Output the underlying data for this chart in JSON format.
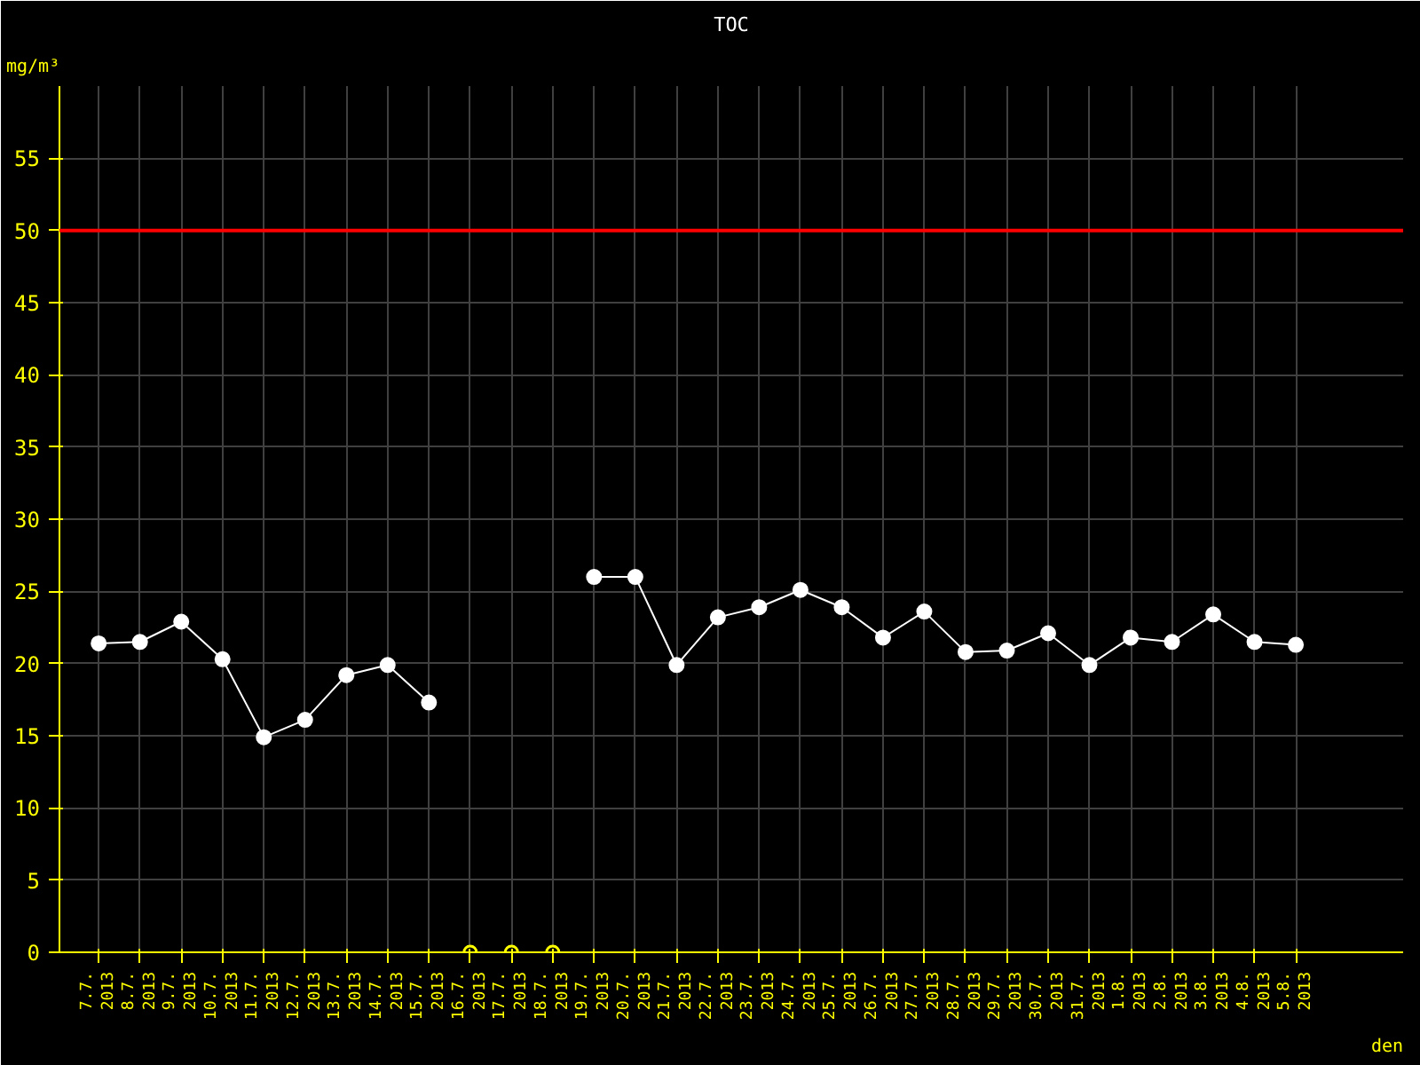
{
  "chart_data": {
    "type": "line",
    "title": "TOC",
    "xlabel": "den",
    "ylabel": "mg/m³",
    "categories": [
      "7.7. 2013",
      "8.7. 2013",
      "9.7. 2013",
      "10.7. 2013",
      "11.7. 2013",
      "12.7. 2013",
      "13.7. 2013",
      "14.7. 2013",
      "15.7. 2013",
      "16.7. 2013",
      "17.7. 2013",
      "18.7. 2013",
      "19.7. 2013",
      "20.7. 2013",
      "21.7. 2013",
      "22.7. 2013",
      "23.7. 2013",
      "24.7. 2013",
      "25.7. 2013",
      "26.7. 2013",
      "27.7. 2013",
      "28.7. 2013",
      "29.7. 2013",
      "30.7. 2013",
      "31.7. 2013",
      "1.8. 2013",
      "2.8. 2013",
      "3.8. 2013",
      "4.8. 2013",
      "5.8. 2013"
    ],
    "series": [
      {
        "color": "#ffffff",
        "marker": "circle",
        "values": [
          21.4,
          21.5,
          22.9,
          20.3,
          14.9,
          16.1,
          19.2,
          19.9,
          17.3,
          null,
          null,
          null,
          26.0,
          26.0,
          19.9,
          23.2,
          23.9,
          25.1,
          23.9,
          21.8,
          23.6,
          20.8,
          20.9,
          22.1,
          19.9,
          21.8,
          21.5,
          23.4,
          21.5,
          21.3
        ]
      },
      {
        "type": "scatter",
        "color": "#ffff00",
        "marker": "circle",
        "values": [
          null,
          null,
          null,
          null,
          null,
          null,
          null,
          null,
          null,
          0,
          0,
          0,
          null,
          null,
          null,
          null,
          null,
          null,
          null,
          null,
          null,
          null,
          null,
          null,
          null,
          null,
          null,
          null,
          null,
          null
        ]
      }
    ],
    "ylim": [
      0,
      60
    ],
    "yticks": [
      0,
      5,
      10,
      15,
      20,
      25,
      30,
      35,
      40,
      45,
      50,
      55
    ],
    "ref_lines": [
      {
        "axis": "y",
        "value": 50,
        "color": "#ff0000"
      }
    ],
    "grid": true,
    "line_style": "solid"
  }
}
